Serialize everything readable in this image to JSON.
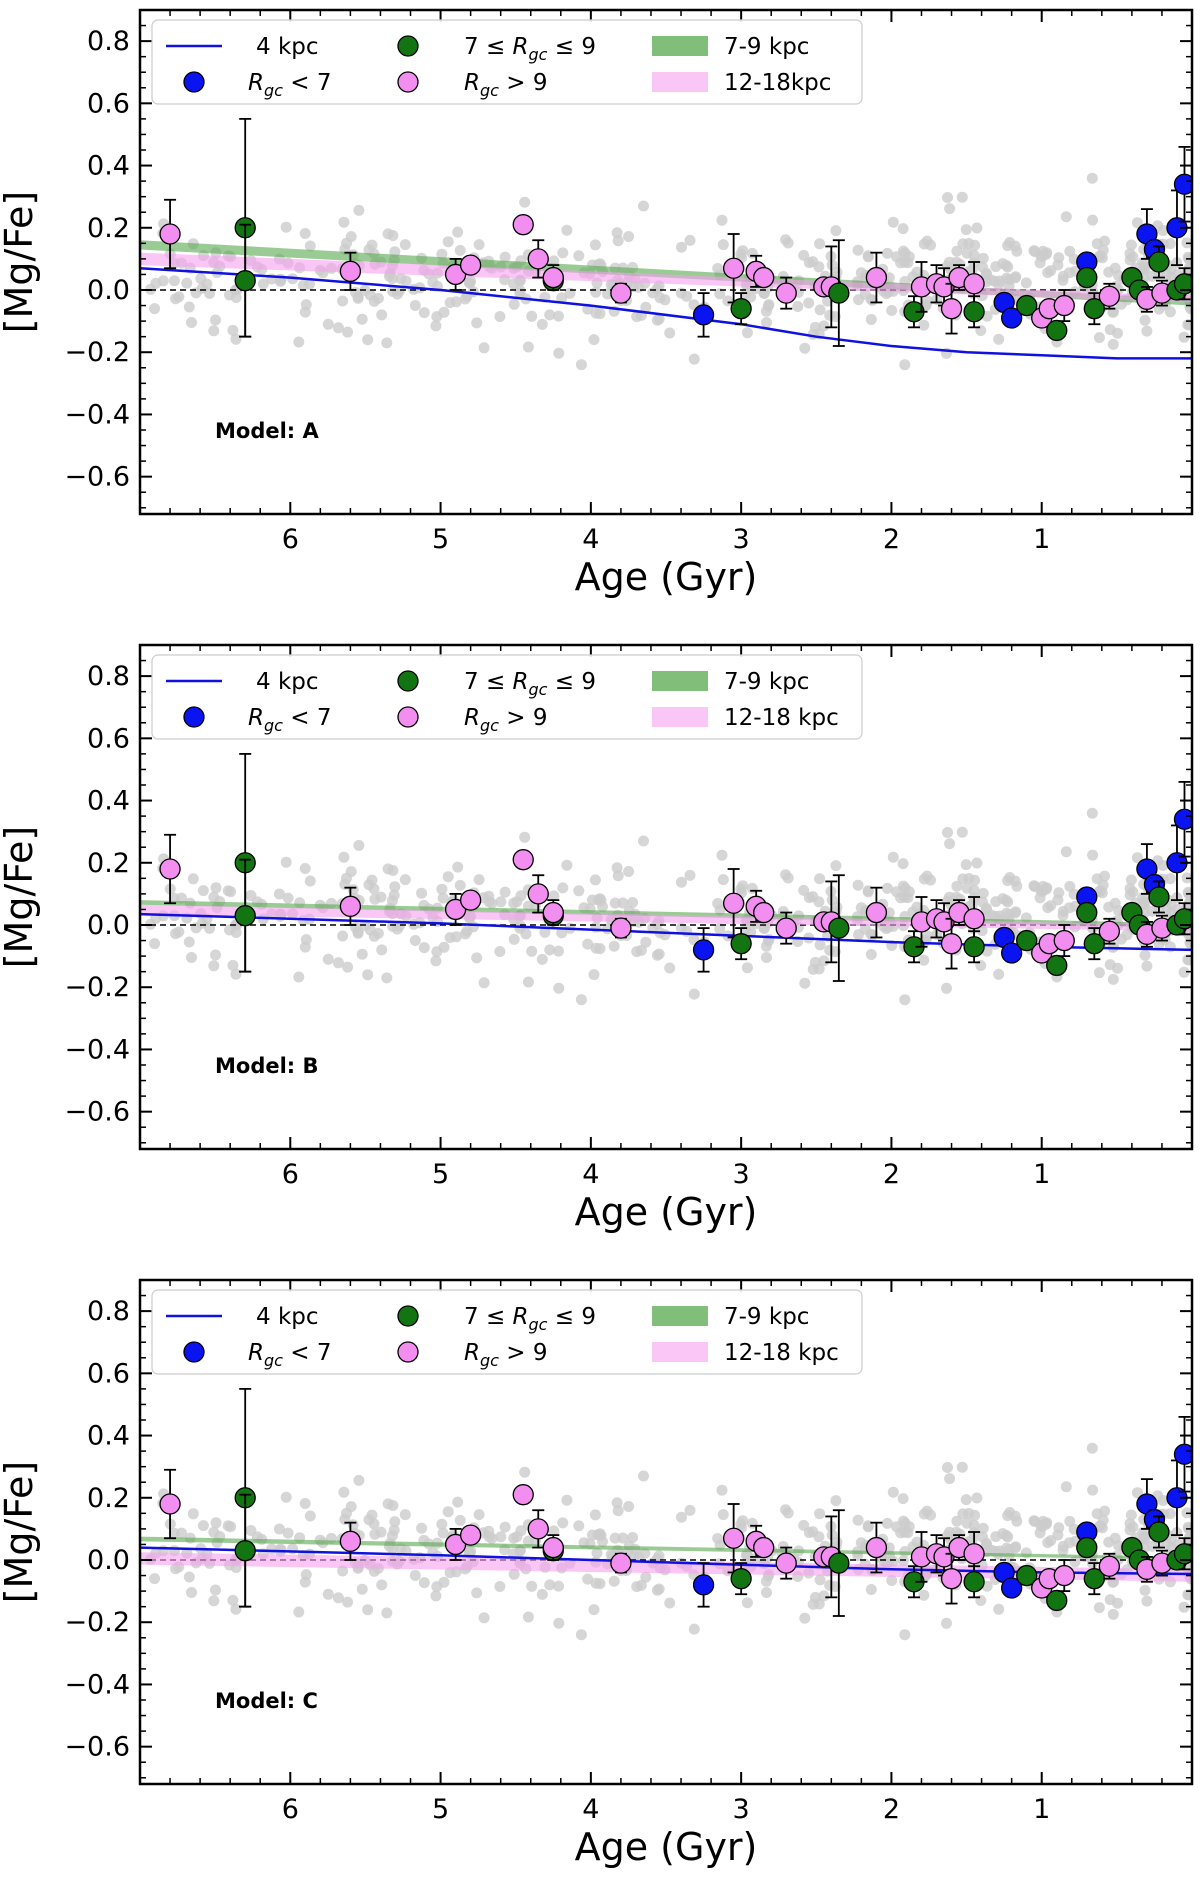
{
  "chart_data": [
    {
      "type": "scatter",
      "xlabel": "Age (Gyr)",
      "ylabel": "[Mg/Fe]",
      "annotation": "Model: A",
      "xlim": [
        7.0,
        0.0
      ],
      "ylim": [
        -0.72,
        0.9
      ],
      "x_ticks": [
        6,
        5,
        4,
        3,
        2,
        1
      ],
      "y_ticks": [
        -0.6,
        -0.4,
        -0.2,
        0.0,
        0.2,
        0.4,
        0.6,
        0.8
      ],
      "x_tick_labels": [
        "6",
        "5",
        "4",
        "3",
        "2",
        "1"
      ],
      "y_tick_labels": [
        "−0.6",
        "−0.4",
        "−0.2",
        "0.0",
        "0.2",
        "0.4",
        "0.6",
        "0.8"
      ],
      "legend": {
        "placement": "top-left",
        "labels": [
          "4 kpc",
          "7 ≤ R_gc ≤ 9",
          "7-9 kpc",
          "R_gc < 7",
          "R_gc > 9",
          "12-18kpc"
        ]
      },
      "series": [
        {
          "name": "4 kpc",
          "kind": "line",
          "color": "#1010e0",
          "x": [
            7.0,
            6.0,
            5.0,
            4.0,
            3.0,
            2.5,
            2.0,
            1.5,
            1.0,
            0.5,
            0.0
          ],
          "y": [
            0.07,
            0.04,
            0.0,
            -0.05,
            -0.11,
            -0.15,
            -0.18,
            -0.2,
            -0.21,
            -0.22,
            -0.22
          ]
        },
        {
          "name": "7-9 kpc",
          "kind": "band",
          "color": "#56a84e",
          "x": [
            7.0,
            0.0
          ],
          "y_low": [
            0.13,
            -0.05
          ],
          "y_high": [
            0.16,
            -0.03
          ]
        },
        {
          "name": "12-18kpc",
          "kind": "band",
          "color": "#f5a0f0",
          "x": [
            7.0,
            0.0
          ],
          "y_low": [
            0.08,
            -0.04
          ],
          "y_high": [
            0.12,
            -0.02
          ]
        }
      ]
    },
    {
      "type": "scatter",
      "xlabel": "Age (Gyr)",
      "ylabel": "[Mg/Fe]",
      "annotation": "Model: B",
      "xlim": [
        7.0,
        0.0
      ],
      "ylim": [
        -0.72,
        0.9
      ],
      "x_ticks": [
        6,
        5,
        4,
        3,
        2,
        1
      ],
      "y_ticks": [
        -0.6,
        -0.4,
        -0.2,
        0.0,
        0.2,
        0.4,
        0.6,
        0.8
      ],
      "x_tick_labels": [
        "6",
        "5",
        "4",
        "3",
        "2",
        "1"
      ],
      "y_tick_labels": [
        "−0.6",
        "−0.4",
        "−0.2",
        "0.0",
        "0.2",
        "0.4",
        "0.6",
        "0.8"
      ],
      "legend": {
        "placement": "top-left",
        "labels": [
          "4 kpc",
          "7 ≤ R_gc ≤ 9",
          "7-9 kpc",
          "R_gc < 7",
          "R_gc > 9",
          "12-18 kpc"
        ]
      },
      "series": [
        {
          "name": "4 kpc",
          "kind": "line",
          "color": "#1010e0",
          "x": [
            7.0,
            5.0,
            3.0,
            2.0,
            1.0,
            0.0
          ],
          "y": [
            0.035,
            0.005,
            -0.035,
            -0.055,
            -0.07,
            -0.08
          ]
        },
        {
          "name": "7-9 kpc",
          "kind": "band",
          "color": "#56a84e",
          "x": [
            7.0,
            0.0
          ],
          "y_low": [
            0.065,
            -0.01
          ],
          "y_high": [
            0.08,
            0.005
          ]
        },
        {
          "name": "12-18 kpc",
          "kind": "band",
          "color": "#f5a0f0",
          "x": [
            7.0,
            0.0
          ],
          "y_low": [
            0.035,
            -0.02
          ],
          "y_high": [
            0.065,
            0.0
          ]
        }
      ]
    },
    {
      "type": "scatter",
      "xlabel": "Age (Gyr)",
      "ylabel": "[Mg/Fe]",
      "annotation": "Model: C",
      "xlim": [
        7.0,
        0.0
      ],
      "ylim": [
        -0.72,
        0.9
      ],
      "x_ticks": [
        6,
        5,
        4,
        3,
        2,
        1
      ],
      "y_ticks": [
        -0.6,
        -0.4,
        -0.2,
        0.0,
        0.2,
        0.4,
        0.6,
        0.8
      ],
      "x_tick_labels": [
        "6",
        "5",
        "4",
        "3",
        "2",
        "1"
      ],
      "y_tick_labels": [
        "−0.6",
        "−0.4",
        "−0.2",
        "0.0",
        "0.2",
        "0.4",
        "0.6",
        "0.8"
      ],
      "legend": {
        "placement": "top-left",
        "labels": [
          "4 kpc",
          "7 ≤ R_gc ≤ 9",
          "7-9 kpc",
          "R_gc < 7",
          "R_gc > 9",
          "12-18 kpc"
        ]
      },
      "series": [
        {
          "name": "4 kpc",
          "kind": "line",
          "color": "#1010e0",
          "x": [
            7.0,
            5.0,
            3.0,
            2.0,
            1.0,
            0.0
          ],
          "y": [
            0.04,
            0.015,
            -0.015,
            -0.03,
            -0.04,
            -0.045
          ]
        },
        {
          "name": "7-9 kpc",
          "kind": "band",
          "color": "#56a84e",
          "x": [
            7.0,
            0.0
          ],
          "y_low": [
            0.06,
            0.0
          ],
          "y_high": [
            0.075,
            0.01
          ]
        },
        {
          "name": "12-18 kpc",
          "kind": "band",
          "color": "#f5a0f0",
          "x": [
            7.0,
            0.0
          ],
          "y_low": [
            -0.015,
            -0.07
          ],
          "y_high": [
            0.025,
            -0.03
          ]
        }
      ]
    }
  ],
  "observations": {
    "groups": [
      {
        "name": "R_gc < 7",
        "color": "#0a14f0"
      },
      {
        "name": "7 ≤ R_gc ≤ 9",
        "color": "#127512"
      },
      {
        "name": "R_gc > 9",
        "color": "#f28ef0"
      }
    ],
    "points": [
      {
        "group": 2,
        "age": 6.8,
        "mgfe": 0.18,
        "err": 0.11
      },
      {
        "group": 1,
        "age": 6.3,
        "mgfe": 0.2,
        "err": 0.35
      },
      {
        "group": 1,
        "age": 6.3,
        "mgfe": 0.03,
        "err": 0.18
      },
      {
        "group": 2,
        "age": 5.6,
        "mgfe": 0.06,
        "err": 0.06
      },
      {
        "group": 2,
        "age": 4.9,
        "mgfe": 0.05,
        "err": 0.05
      },
      {
        "group": 2,
        "age": 4.8,
        "mgfe": 0.08,
        "err": 0.0
      },
      {
        "group": 2,
        "age": 4.45,
        "mgfe": 0.21,
        "err": 0.0
      },
      {
        "group": 2,
        "age": 4.35,
        "mgfe": 0.1,
        "err": 0.06
      },
      {
        "group": 1,
        "age": 4.25,
        "mgfe": 0.03,
        "err": 0.0
      },
      {
        "group": 2,
        "age": 4.25,
        "mgfe": 0.04,
        "err": 0.04
      },
      {
        "group": 2,
        "age": 3.8,
        "mgfe": -0.01,
        "err": 0.03
      },
      {
        "group": 0,
        "age": 3.25,
        "mgfe": -0.08,
        "err": 0.07
      },
      {
        "group": 2,
        "age": 3.05,
        "mgfe": 0.07,
        "err": 0.11
      },
      {
        "group": 1,
        "age": 3.0,
        "mgfe": -0.06,
        "err": 0.05
      },
      {
        "group": 2,
        "age": 2.9,
        "mgfe": 0.06,
        "err": 0.05
      },
      {
        "group": 2,
        "age": 2.85,
        "mgfe": 0.04,
        "err": 0.0
      },
      {
        "group": 2,
        "age": 2.7,
        "mgfe": -0.01,
        "err": 0.05
      },
      {
        "group": 2,
        "age": 2.45,
        "mgfe": 0.01,
        "err": 0.0
      },
      {
        "group": 2,
        "age": 2.4,
        "mgfe": 0.01,
        "err": 0.13
      },
      {
        "group": 1,
        "age": 2.35,
        "mgfe": -0.01,
        "err": 0.17
      },
      {
        "group": 2,
        "age": 2.1,
        "mgfe": 0.04,
        "err": 0.08
      },
      {
        "group": 1,
        "age": 1.85,
        "mgfe": -0.07,
        "err": 0.05
      },
      {
        "group": 2,
        "age": 1.8,
        "mgfe": 0.01,
        "err": 0.08
      },
      {
        "group": 2,
        "age": 1.7,
        "mgfe": 0.02,
        "err": 0.06
      },
      {
        "group": 2,
        "age": 1.65,
        "mgfe": 0.01,
        "err": 0.06
      },
      {
        "group": 2,
        "age": 1.6,
        "mgfe": -0.06,
        "err": 0.08
      },
      {
        "group": 2,
        "age": 1.55,
        "mgfe": 0.04,
        "err": 0.04
      },
      {
        "group": 2,
        "age": 1.45,
        "mgfe": 0.02,
        "err": 0.07
      },
      {
        "group": 1,
        "age": 1.45,
        "mgfe": -0.07,
        "err": 0.05
      },
      {
        "group": 0,
        "age": 1.25,
        "mgfe": -0.04,
        "err": 0.0
      },
      {
        "group": 0,
        "age": 1.2,
        "mgfe": -0.09,
        "err": 0.0
      },
      {
        "group": 1,
        "age": 1.1,
        "mgfe": -0.05,
        "err": 0.0
      },
      {
        "group": 2,
        "age": 1.0,
        "mgfe": -0.09,
        "err": 0.0
      },
      {
        "group": 2,
        "age": 0.95,
        "mgfe": -0.06,
        "err": 0.0
      },
      {
        "group": 1,
        "age": 0.9,
        "mgfe": -0.13,
        "err": 0.0
      },
      {
        "group": 2,
        "age": 0.85,
        "mgfe": -0.05,
        "err": 0.05
      },
      {
        "group": 0,
        "age": 0.7,
        "mgfe": 0.09,
        "err": 0.0
      },
      {
        "group": 1,
        "age": 0.7,
        "mgfe": 0.04,
        "err": 0.0
      },
      {
        "group": 1,
        "age": 0.65,
        "mgfe": -0.06,
        "err": 0.05
      },
      {
        "group": 2,
        "age": 0.55,
        "mgfe": -0.02,
        "err": 0.04
      },
      {
        "group": 1,
        "age": 0.4,
        "mgfe": 0.04,
        "err": 0.0
      },
      {
        "group": 1,
        "age": 0.35,
        "mgfe": 0.0,
        "err": 0.0
      },
      {
        "group": 0,
        "age": 0.3,
        "mgfe": 0.18,
        "err": 0.08
      },
      {
        "group": 0,
        "age": 0.25,
        "mgfe": 0.13,
        "err": 0.0
      },
      {
        "group": 2,
        "age": 0.3,
        "mgfe": -0.03,
        "err": 0.04
      },
      {
        "group": 1,
        "age": 0.22,
        "mgfe": 0.09,
        "err": 0.05
      },
      {
        "group": 2,
        "age": 0.2,
        "mgfe": -0.01,
        "err": 0.04
      },
      {
        "group": 1,
        "age": 0.1,
        "mgfe": 0.0,
        "err": 0.0
      },
      {
        "group": 0,
        "age": 0.1,
        "mgfe": 0.2,
        "err": 0.12
      },
      {
        "group": 0,
        "age": 0.05,
        "mgfe": 0.34,
        "err": 0.12
      },
      {
        "group": 1,
        "age": 0.05,
        "mgfe": 0.02,
        "err": 0.05
      }
    ]
  }
}
